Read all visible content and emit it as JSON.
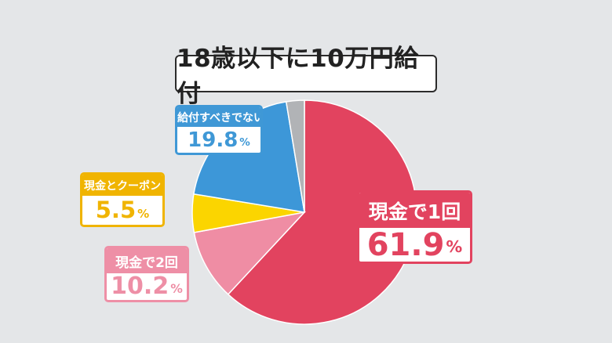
{
  "title": "18歳以下に10万円給付",
  "chart_data": {
    "type": "pie",
    "title": "18歳以下に10万円給付",
    "slices": [
      {
        "label": "現金で1回",
        "value": 61.9,
        "display": "61.9",
        "unit": "%",
        "color": "#e2435f"
      },
      {
        "label": "現金で2回",
        "value": 10.2,
        "display": "10.2",
        "unit": "%",
        "color": "#ef8da4"
      },
      {
        "label": "現金とクーポン",
        "value": 5.5,
        "display": "5.5",
        "unit": "%",
        "color": "#fbd500"
      },
      {
        "label": "給付すべきでない",
        "value": 19.8,
        "display": "19.8",
        "unit": "%",
        "color": "#3d97d8"
      },
      {
        "label": "",
        "value": 2.6,
        "display": "",
        "unit": "",
        "color": "#b1b3b6"
      }
    ],
    "start": "12 o'clock",
    "direction": "clockwise",
    "legend": "callout boxes"
  },
  "labels": [
    {
      "category": "給付すべきでない",
      "value": "19.8",
      "unit": "%"
    },
    {
      "category": "現金とクーポン",
      "value": "5.5",
      "unit": "%"
    },
    {
      "category": "現金で2回",
      "value": "10.2",
      "unit": "%"
    },
    {
      "category": "現金で1回",
      "value": "61.9",
      "unit": "%"
    }
  ]
}
